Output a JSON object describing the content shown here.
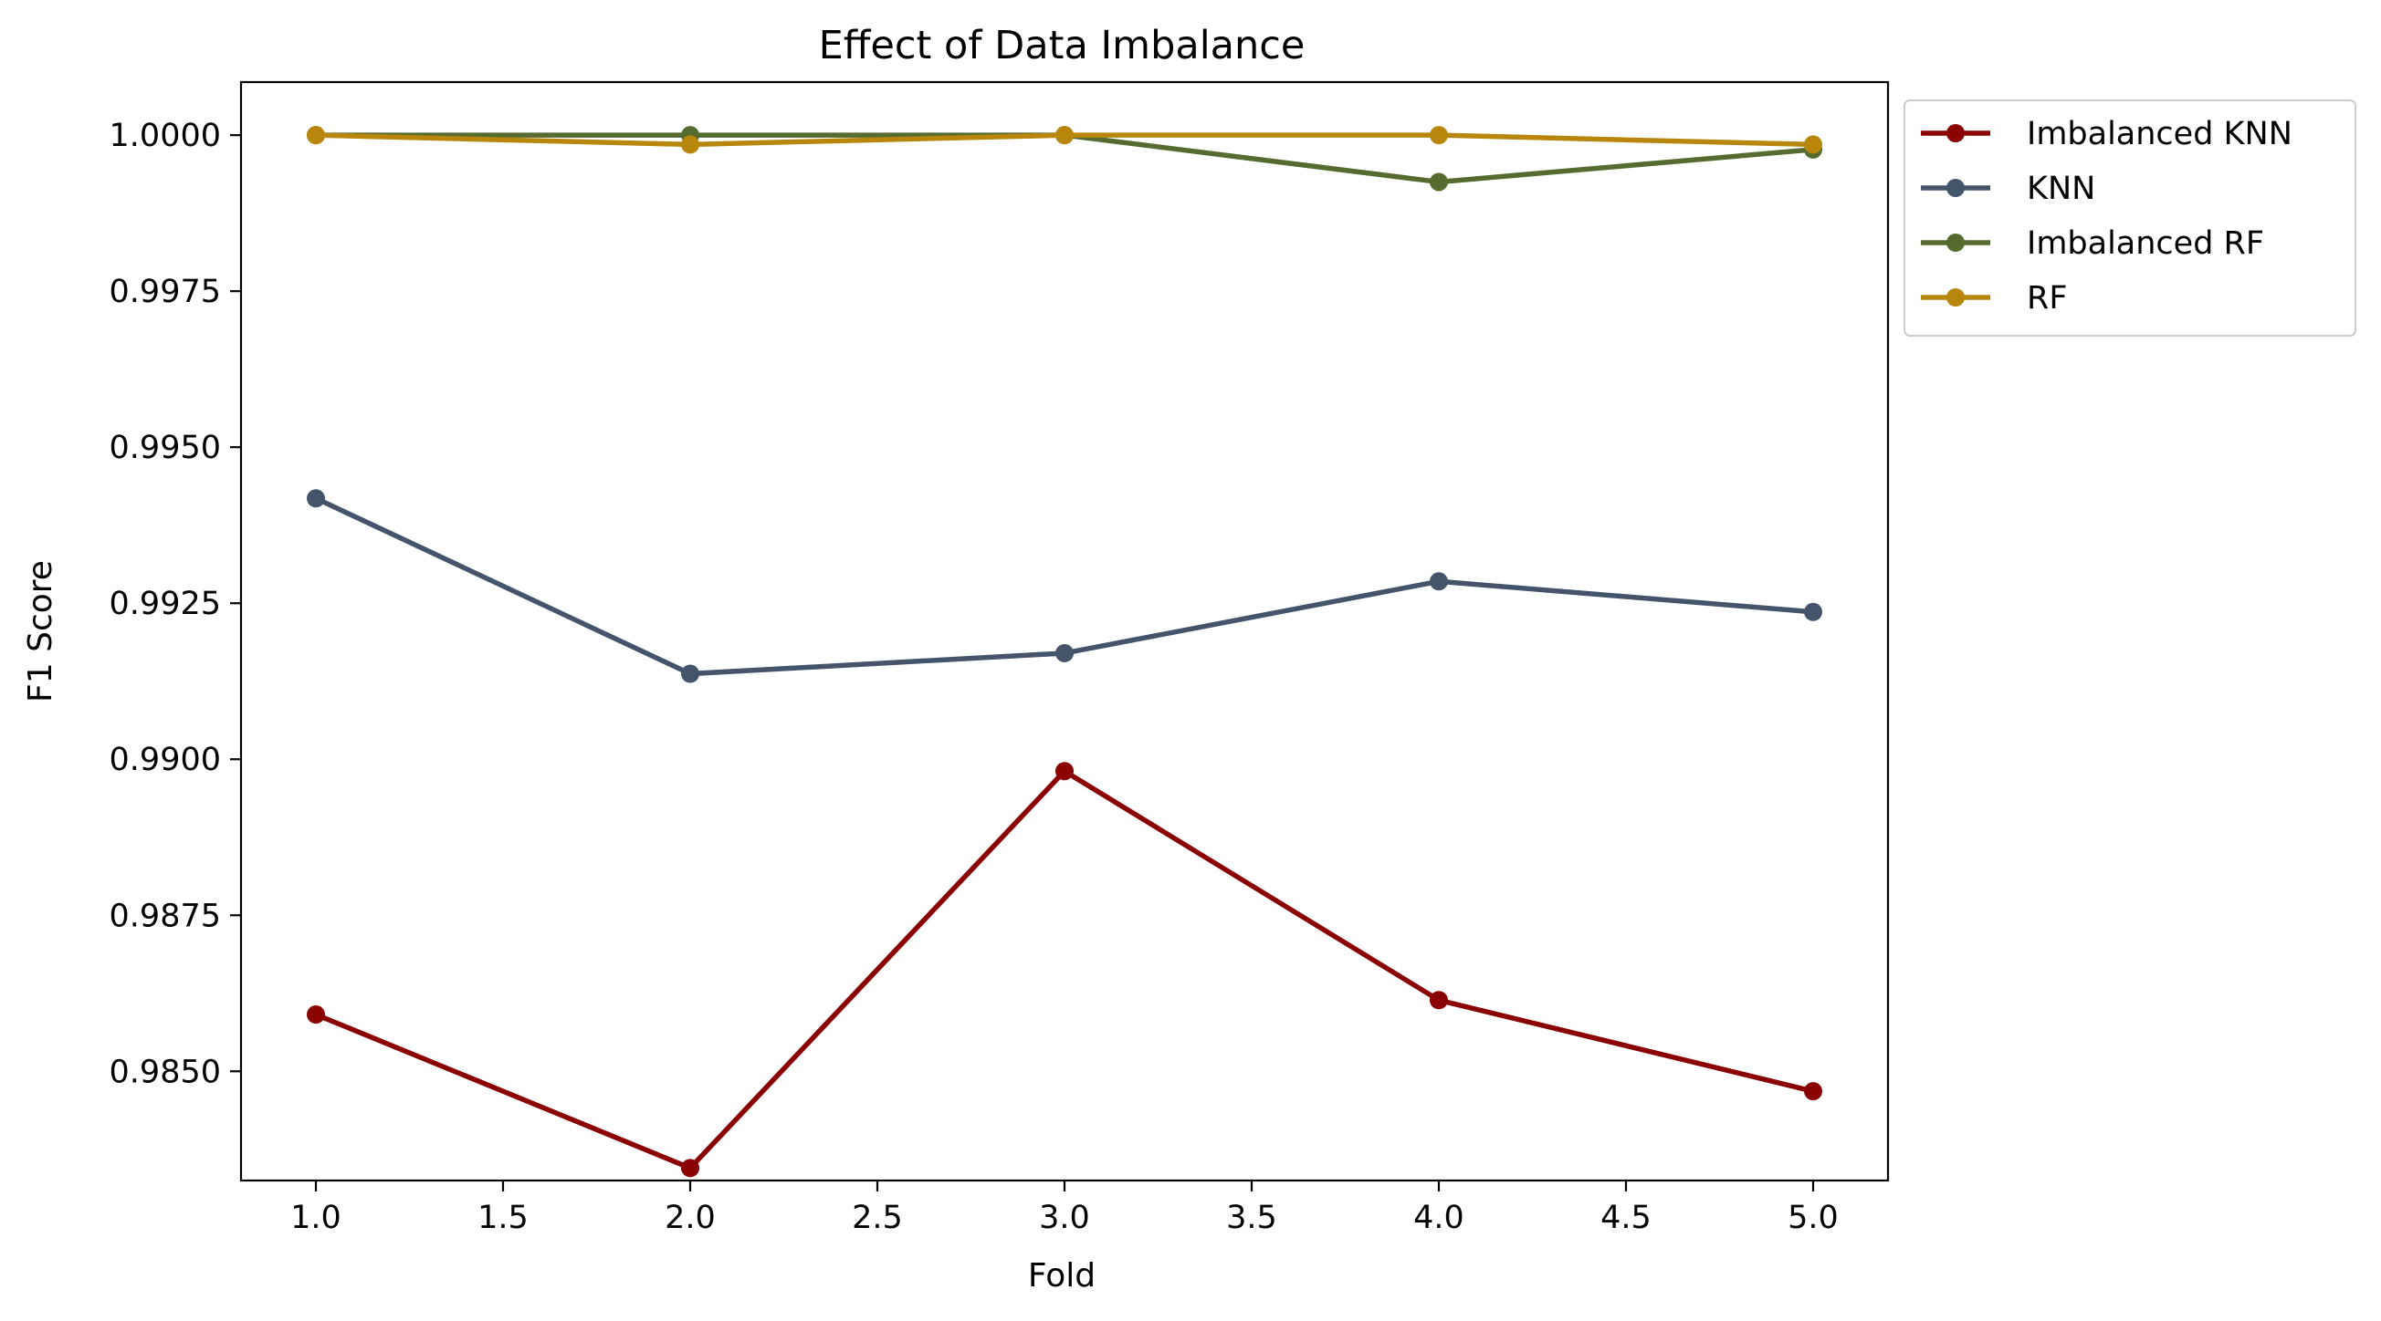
{
  "chart_data": {
    "type": "line",
    "title": "Effect of Data Imbalance",
    "xlabel": "Fold",
    "ylabel": "F1 Score",
    "x": [
      1,
      2,
      3,
      4,
      5
    ],
    "xlim": [
      0.8,
      5.2
    ],
    "ylim": [
      0.98325,
      1.00085
    ],
    "xticks": [
      1.0,
      1.5,
      2.0,
      2.5,
      3.0,
      3.5,
      4.0,
      4.5,
      5.0
    ],
    "xtick_labels": [
      "1.0",
      "1.5",
      "2.0",
      "2.5",
      "3.0",
      "3.5",
      "4.0",
      "4.5",
      "5.0"
    ],
    "yticks": [
      0.985,
      0.9875,
      0.99,
      0.9925,
      0.995,
      0.9975,
      1.0
    ],
    "ytick_labels": [
      "0.9850",
      "0.9875",
      "0.9900",
      "0.9925",
      "0.9950",
      "0.9975",
      "1.0000"
    ],
    "grid": false,
    "legend_position": "outside-top-right",
    "series": [
      {
        "name": "Imbalanced KNN",
        "color": "#8b0000",
        "values": [
          0.98591,
          0.98345,
          0.98981,
          0.98614,
          0.98468
        ]
      },
      {
        "name": "KNN",
        "color": "#44546a",
        "values": [
          0.99418,
          0.99137,
          0.9917,
          0.99285,
          0.99236
        ]
      },
      {
        "name": "Imbalanced RF",
        "color": "#556b2f",
        "values": [
          1.0,
          1.0,
          1.0,
          0.99925,
          0.99977
        ]
      },
      {
        "name": "RF",
        "color": "#b8860b",
        "values": [
          1.0,
          0.99985,
          1.0,
          1.0,
          0.99985
        ]
      }
    ]
  }
}
